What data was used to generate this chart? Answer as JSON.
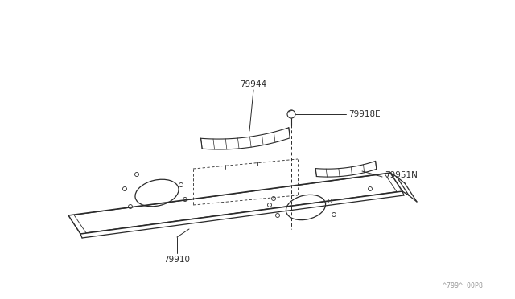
{
  "bg_color": "#ffffff",
  "line_color": "#2a2a2a",
  "label_color": "#2a2a2a",
  "watermark": "^799^ 00P8",
  "figsize": [
    6.4,
    3.72
  ],
  "dpi": 100
}
